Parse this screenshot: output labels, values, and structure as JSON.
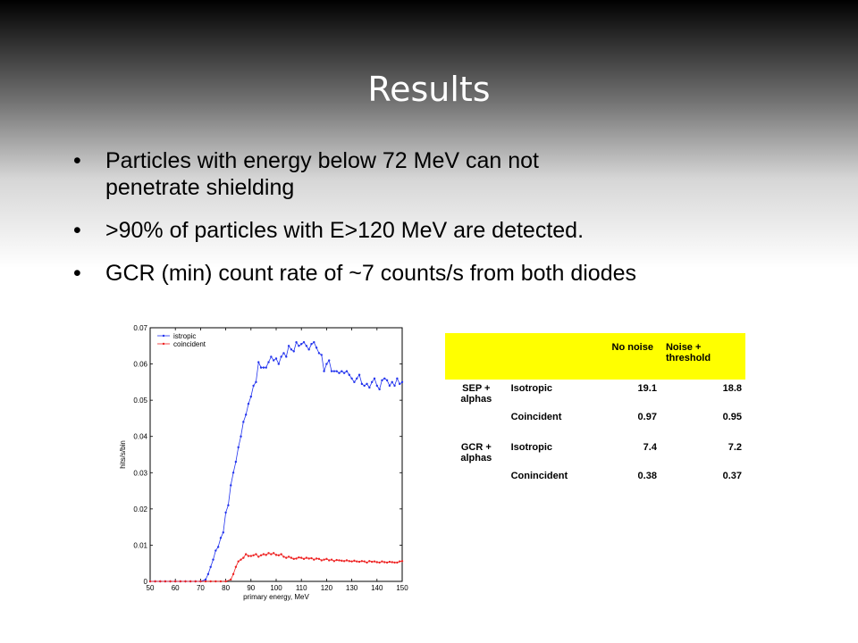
{
  "slide": {
    "title": "Results",
    "bullets": [
      {
        "lines": [
          "Particles with energy below 72 MeV can not",
          "penetrate shielding"
        ]
      },
      {
        "lines": [
          ">90% of particles with E>120 MeV are detected."
        ]
      },
      {
        "lines": [
          "GCR (min) count rate of ~7 counts/s from both diodes"
        ]
      }
    ]
  },
  "table": {
    "headers": [
      "",
      "",
      "No noise",
      "Noise + threshold"
    ],
    "rows": [
      {
        "group": "SEP + alphas",
        "mode": "Isotropic",
        "no_noise": "19.1",
        "noise": "18.8"
      },
      {
        "group": "",
        "mode": "Coincident",
        "no_noise": "0.97",
        "noise": "0.95"
      },
      {
        "group": "GCR + alphas",
        "mode": "Isotropic",
        "no_noise": "7.4",
        "noise": "7.2"
      },
      {
        "group": "",
        "mode": "Conincident",
        "no_noise": "0.38",
        "noise": "0.37"
      }
    ],
    "header_color": "#ffff00"
  },
  "chart_data": {
    "type": "line",
    "xlabel": "primary energy, MeV",
    "ylabel": "hits/s/bin",
    "xlim": [
      50,
      150
    ],
    "ylim": [
      0,
      0.07
    ],
    "xticks": [
      "50",
      "60",
      "70",
      "80",
      "90",
      "100",
      "110",
      "120",
      "130",
      "140",
      "150"
    ],
    "yticks": [
      "0",
      "0.01",
      "0.02",
      "0.03",
      "0.04",
      "0.05",
      "0.06",
      "0.07"
    ],
    "grid": false,
    "legend": "top-left",
    "series": [
      {
        "name": "istropic",
        "color": "#2233ee",
        "points": [
          [
            50,
            0
          ],
          [
            52,
            0
          ],
          [
            54,
            0
          ],
          [
            56,
            0
          ],
          [
            58,
            0
          ],
          [
            60,
            0
          ],
          [
            62,
            0
          ],
          [
            64,
            0
          ],
          [
            66,
            0
          ],
          [
            68,
            0
          ],
          [
            70,
            0
          ],
          [
            72,
            0.0005
          ],
          [
            73,
            0.002
          ],
          [
            74,
            0.004
          ],
          [
            75,
            0.006
          ],
          [
            76,
            0.0085
          ],
          [
            77,
            0.0095
          ],
          [
            78,
            0.012
          ],
          [
            79,
            0.0135
          ],
          [
            80,
            0.019
          ],
          [
            81,
            0.021
          ],
          [
            82,
            0.0265
          ],
          [
            83,
            0.03
          ],
          [
            84,
            0.033
          ],
          [
            85,
            0.037
          ],
          [
            86,
            0.04
          ],
          [
            87,
            0.044
          ],
          [
            88,
            0.046
          ],
          [
            89,
            0.049
          ],
          [
            90,
            0.051
          ],
          [
            91,
            0.054
          ],
          [
            92,
            0.055
          ],
          [
            93,
            0.0605
          ],
          [
            94,
            0.059
          ],
          [
            95,
            0.059
          ],
          [
            96,
            0.059
          ],
          [
            97,
            0.0605
          ],
          [
            98,
            0.062
          ],
          [
            99,
            0.061
          ],
          [
            100,
            0.0615
          ],
          [
            101,
            0.06
          ],
          [
            102,
            0.062
          ],
          [
            103,
            0.063
          ],
          [
            104,
            0.062
          ],
          [
            105,
            0.065
          ],
          [
            106,
            0.064
          ],
          [
            107,
            0.0635
          ],
          [
            108,
            0.066
          ],
          [
            109,
            0.065
          ],
          [
            110,
            0.0655
          ],
          [
            111,
            0.066
          ],
          [
            112,
            0.065
          ],
          [
            113,
            0.064
          ],
          [
            114,
            0.0655
          ],
          [
            115,
            0.066
          ],
          [
            116,
            0.0645
          ],
          [
            117,
            0.063
          ],
          [
            118,
            0.0625
          ],
          [
            119,
            0.058
          ],
          [
            120,
            0.06
          ],
          [
            121,
            0.061
          ],
          [
            122,
            0.058
          ],
          [
            123,
            0.058
          ],
          [
            124,
            0.058
          ],
          [
            125,
            0.0575
          ],
          [
            126,
            0.058
          ],
          [
            127,
            0.0575
          ],
          [
            128,
            0.058
          ],
          [
            129,
            0.057
          ],
          [
            130,
            0.056
          ],
          [
            131,
            0.055
          ],
          [
            132,
            0.056
          ],
          [
            133,
            0.057
          ],
          [
            134,
            0.0545
          ],
          [
            135,
            0.054
          ],
          [
            136,
            0.0545
          ],
          [
            137,
            0.0535
          ],
          [
            138,
            0.055
          ],
          [
            139,
            0.056
          ],
          [
            140,
            0.054
          ],
          [
            141,
            0.053
          ],
          [
            142,
            0.0555
          ],
          [
            143,
            0.056
          ],
          [
            144,
            0.0555
          ],
          [
            145,
            0.054
          ],
          [
            146,
            0.055
          ],
          [
            147,
            0.054
          ],
          [
            148,
            0.056
          ],
          [
            149,
            0.0545
          ],
          [
            150,
            0.055
          ]
        ]
      },
      {
        "name": "coincident",
        "color": "#ee2222",
        "points": [
          [
            50,
            0
          ],
          [
            52,
            0
          ],
          [
            54,
            0
          ],
          [
            56,
            0
          ],
          [
            58,
            0
          ],
          [
            60,
            0
          ],
          [
            62,
            0
          ],
          [
            64,
            0
          ],
          [
            66,
            0
          ],
          [
            68,
            0
          ],
          [
            70,
            0
          ],
          [
            72,
            0
          ],
          [
            74,
            0
          ],
          [
            76,
            0
          ],
          [
            78,
            0
          ],
          [
            80,
            0
          ],
          [
            82,
            0.0005
          ],
          [
            83,
            0.002
          ],
          [
            84,
            0.004
          ],
          [
            85,
            0.0055
          ],
          [
            86,
            0.006
          ],
          [
            87,
            0.0065
          ],
          [
            88,
            0.0075
          ],
          [
            89,
            0.007
          ],
          [
            90,
            0.007
          ],
          [
            91,
            0.0072
          ],
          [
            92,
            0.0075
          ],
          [
            93,
            0.0068
          ],
          [
            94,
            0.0072
          ],
          [
            95,
            0.0075
          ],
          [
            96,
            0.0073
          ],
          [
            97,
            0.0078
          ],
          [
            98,
            0.0075
          ],
          [
            99,
            0.0078
          ],
          [
            100,
            0.0073
          ],
          [
            101,
            0.0072
          ],
          [
            102,
            0.0075
          ],
          [
            103,
            0.0068
          ],
          [
            104,
            0.0065
          ],
          [
            105,
            0.0068
          ],
          [
            106,
            0.0065
          ],
          [
            107,
            0.0062
          ],
          [
            108,
            0.0063
          ],
          [
            109,
            0.0066
          ],
          [
            110,
            0.0065
          ],
          [
            111,
            0.0062
          ],
          [
            112,
            0.0065
          ],
          [
            113,
            0.0063
          ],
          [
            114,
            0.0064
          ],
          [
            115,
            0.006
          ],
          [
            116,
            0.0063
          ],
          [
            117,
            0.0062
          ],
          [
            118,
            0.0058
          ],
          [
            119,
            0.006
          ],
          [
            120,
            0.0062
          ],
          [
            121,
            0.0058
          ],
          [
            122,
            0.006
          ],
          [
            123,
            0.0056
          ],
          [
            124,
            0.0059
          ],
          [
            125,
            0.0058
          ],
          [
            126,
            0.0057
          ],
          [
            127,
            0.0056
          ],
          [
            128,
            0.0058
          ],
          [
            129,
            0.0056
          ],
          [
            130,
            0.0055
          ],
          [
            131,
            0.0057
          ],
          [
            132,
            0.0055
          ],
          [
            133,
            0.0054
          ],
          [
            134,
            0.0056
          ],
          [
            135,
            0.0055
          ],
          [
            136,
            0.0052
          ],
          [
            137,
            0.0056
          ],
          [
            138,
            0.0054
          ],
          [
            139,
            0.0055
          ],
          [
            140,
            0.0053
          ],
          [
            141,
            0.0052
          ],
          [
            142,
            0.0055
          ],
          [
            143,
            0.0053
          ],
          [
            144,
            0.0052
          ],
          [
            145,
            0.0054
          ],
          [
            146,
            0.0053
          ],
          [
            147,
            0.0052
          ],
          [
            148,
            0.0052
          ],
          [
            149,
            0.0055
          ],
          [
            150,
            0.0056
          ]
        ]
      }
    ]
  }
}
